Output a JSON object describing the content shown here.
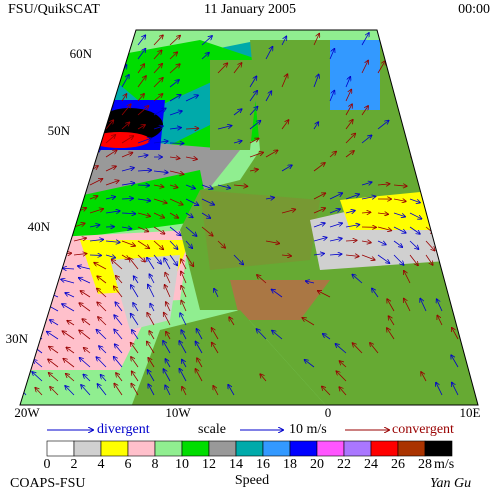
{
  "header": {
    "left": "FSU/QuikSCAT",
    "center": "11 January 2005",
    "right": "00:00"
  },
  "lat_labels": [
    "60N",
    "50N",
    "40N",
    "30N"
  ],
  "lon_labels": [
    "20W",
    "10W",
    "0",
    "10E"
  ],
  "legend": {
    "divergent": "divergent",
    "scale": "scale",
    "scale_value": "10 m/s",
    "convergent": "convergent"
  },
  "colorbar": {
    "title": "Speed",
    "unit": "m/s",
    "labels": [
      0,
      2,
      4,
      6,
      8,
      10,
      12,
      14,
      16,
      18,
      20,
      22,
      24,
      26,
      28
    ],
    "colors": [
      "#ffffff",
      "#d0d0d0",
      "#ffff00",
      "#ffc0cb",
      "#90ee90",
      "#00dd00",
      "#999999",
      "#00aaaa",
      "#3399ff",
      "#0000ff",
      "#ff55ff",
      "#aa77ff",
      "#ff0000",
      "#aa3300",
      "#000000"
    ]
  },
  "footer": {
    "left": "COAPS-FSU",
    "right": "Yan Gu"
  }
}
